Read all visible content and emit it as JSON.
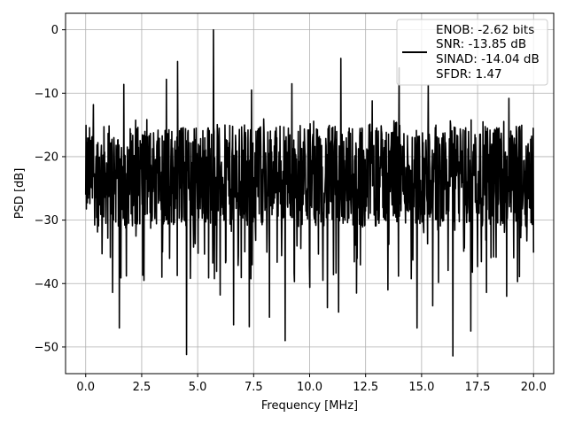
{
  "chart_data": {
    "type": "line",
    "xlabel": "Frequency [MHz]",
    "ylabel": "PSD [dB]",
    "xlim": [
      -0.9,
      20.9
    ],
    "ylim": [
      -54.2,
      2.6
    ],
    "xticks": [
      0.0,
      2.5,
      5.0,
      7.5,
      10.0,
      12.5,
      15.0,
      17.5,
      20.0
    ],
    "xtick_labels": [
      "0.0",
      "2.5",
      "5.0",
      "7.5",
      "10.0",
      "12.5",
      "15.0",
      "17.5",
      "20.0"
    ],
    "yticks": [
      0,
      -10,
      -20,
      -30,
      -40,
      -50
    ],
    "ytick_labels": [
      "0",
      "−10",
      "−20",
      "−30",
      "−40",
      "−50"
    ],
    "grid": true,
    "legend_placement": "top-right",
    "series": [
      {
        "name": "ENOB: -2.62 bits\nSNR: -13.85 dB\nSINAD: -14.04 dB\nSFDR: 1.47",
        "legend_lines": [
          "ENOB: -2.62 bits",
          "SNR: -13.85 dB",
          "SINAD: -14.04 dB",
          "SFDR: 1.47"
        ],
        "color": "#000000",
        "x_range": [
          0.0,
          20.0
        ],
        "baseline_db": -24,
        "noise_band_db": [
          -31,
          -15
        ],
        "peaks": [
          {
            "x": 5.7,
            "y": 0.0
          },
          {
            "x": 11.4,
            "y": -4.5
          },
          {
            "x": 4.1,
            "y": -5.0
          },
          {
            "x": 14.0,
            "y": -6.0
          },
          {
            "x": 3.6,
            "y": -7.8
          },
          {
            "x": 1.7,
            "y": -8.6
          },
          {
            "x": 9.2,
            "y": -8.5
          },
          {
            "x": 7.4,
            "y": -9.5
          },
          {
            "x": 15.3,
            "y": -8.7
          },
          {
            "x": 18.9,
            "y": -10.8
          },
          {
            "x": 0.35,
            "y": -11.8
          },
          {
            "x": 12.8,
            "y": -11.2
          }
        ],
        "dips": [
          {
            "x": 4.5,
            "y": -51.2
          },
          {
            "x": 16.4,
            "y": -51.4
          },
          {
            "x": 8.9,
            "y": -49.0
          },
          {
            "x": 1.5,
            "y": -47.0
          },
          {
            "x": 14.8,
            "y": -47.0
          },
          {
            "x": 7.3,
            "y": -46.8
          },
          {
            "x": 6.6,
            "y": -46.5
          },
          {
            "x": 17.2,
            "y": -47.5
          },
          {
            "x": 11.3,
            "y": -44.5
          },
          {
            "x": 8.2,
            "y": -45.3
          },
          {
            "x": 10.8,
            "y": -43.8
          },
          {
            "x": 1.2,
            "y": -41.4
          },
          {
            "x": 2.6,
            "y": -39.5
          },
          {
            "x": 6.0,
            "y": -41.8
          },
          {
            "x": 17.9,
            "y": -41.4
          },
          {
            "x": 12.1,
            "y": -41.5
          },
          {
            "x": 15.5,
            "y": -43.5
          },
          {
            "x": 18.8,
            "y": -42.0
          },
          {
            "x": 10.0,
            "y": -40.6
          },
          {
            "x": 13.5,
            "y": -41.0
          }
        ]
      }
    ]
  }
}
